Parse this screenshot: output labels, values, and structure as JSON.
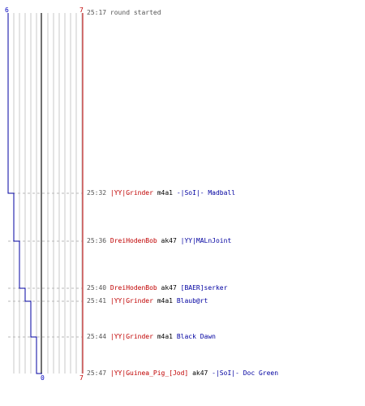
{
  "scores": {
    "blue_top": "6",
    "red_top": "7",
    "blue_bottom": "0",
    "red_bottom": "7"
  },
  "colors": {
    "team_red": "#c00000",
    "team_blue": "#0000a0",
    "grid": "#c8c8c8",
    "center_line": "#707070"
  },
  "events": [
    {
      "time": "25:17",
      "message": "round started"
    },
    {
      "time": "25:32",
      "killer": "|YY|Grinder",
      "weapon": "m4a1",
      "victim": "-|SoI|- Madball"
    },
    {
      "time": "25:36",
      "killer": "DreiHodenBob",
      "weapon": "ak47",
      "victim": "|YY|MALnJoint"
    },
    {
      "time": "25:40",
      "killer": "DreiHodenBob",
      "weapon": "ak47",
      "victim": "[BAER]serker"
    },
    {
      "time": "25:41",
      "killer": "|YY|Grinder",
      "weapon": "m4a1",
      "victim": "Blaub@rt"
    },
    {
      "time": "25:44",
      "killer": "|YY|Grinder",
      "weapon": "m4a1",
      "victim": "Black Dawn"
    },
    {
      "time": "25:47",
      "killer": "|YY|Guinea_Pig_[Jod]",
      "weapon": "ak47",
      "victim": "-|SoI|- Doc Green"
    }
  ],
  "players_alive": {
    "blue": [
      6,
      5,
      4,
      3,
      2,
      1,
      0
    ],
    "red": [
      7,
      7,
      7,
      7,
      7,
      7,
      7
    ]
  }
}
